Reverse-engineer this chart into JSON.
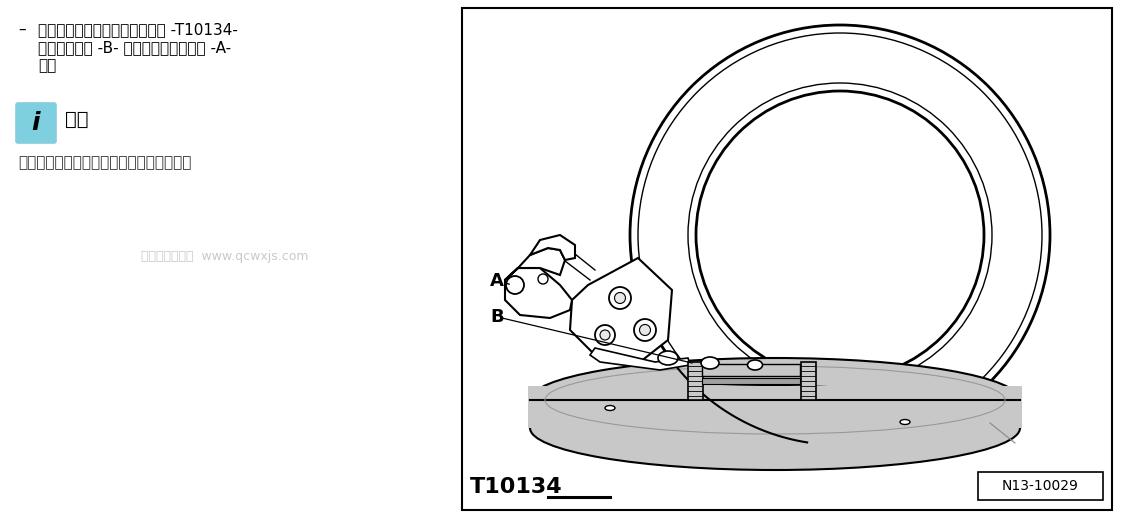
{
  "bg_color": "#ffffff",
  "left_panel": {
    "bullet_char": "–",
    "bullet_text_line1": "将密封法兰的正面放在安装工具 -T10134-",
    "bullet_text_line2": "上，使定位销 -B- 装入脉冲信号轮的孔 -A-",
    "bullet_text_line3": "中。",
    "tip_title": "提示",
    "tip_body": "注意，密封法兰要平整地放在装配夹具上。",
    "watermark": "汽车维修技术网  www.qcwxjs.com"
  },
  "right_panel": {
    "label_A": "A",
    "label_B": "B",
    "tool_label": "T10134",
    "part_number": "N13-10029"
  },
  "colors": {
    "disk_gray": "#c8c8c8",
    "disk_gray_dark": "#a0a0a0",
    "black": "#000000",
    "white": "#ffffff",
    "icon_blue": "#7ecfdf",
    "watermark_gray": "#c0c0c0",
    "text_dark": "#222222"
  }
}
